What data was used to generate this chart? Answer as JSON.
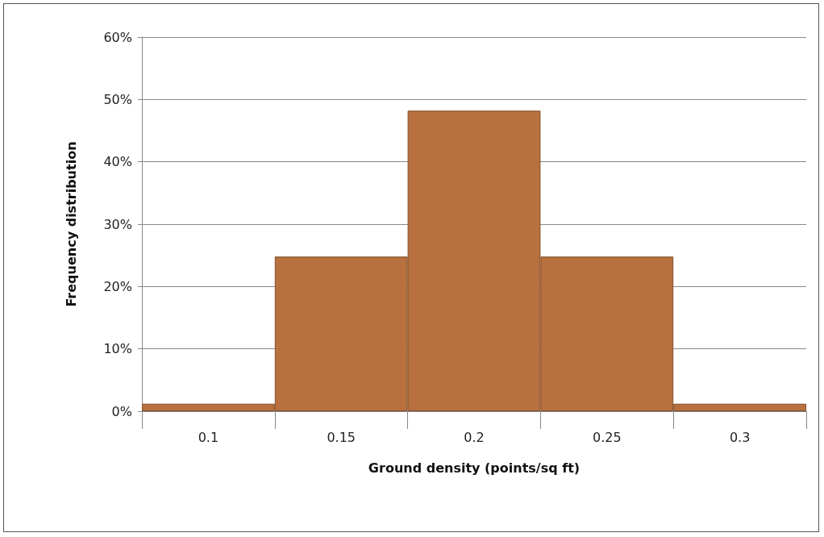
{
  "chart_data": {
    "type": "bar",
    "xlabel": "Ground density (points/sq ft)",
    "ylabel": "Frequency distribution",
    "categories": [
      "0.1",
      "0.15",
      "0.2",
      "0.25",
      "0.3"
    ],
    "values": [
      1.2,
      24.8,
      48.2,
      24.8,
      1.2
    ],
    "color": "#b8703e",
    "ylim": [
      0,
      60
    ],
    "yticks": [
      {
        "value": 0,
        "label": "0%"
      },
      {
        "value": 10,
        "label": "10%"
      },
      {
        "value": 20,
        "label": "20%"
      },
      {
        "value": 30,
        "label": "30%"
      },
      {
        "value": 40,
        "label": "40%"
      },
      {
        "value": 50,
        "label": "50%"
      },
      {
        "value": 60,
        "label": "60%"
      }
    ],
    "grid": "y"
  }
}
